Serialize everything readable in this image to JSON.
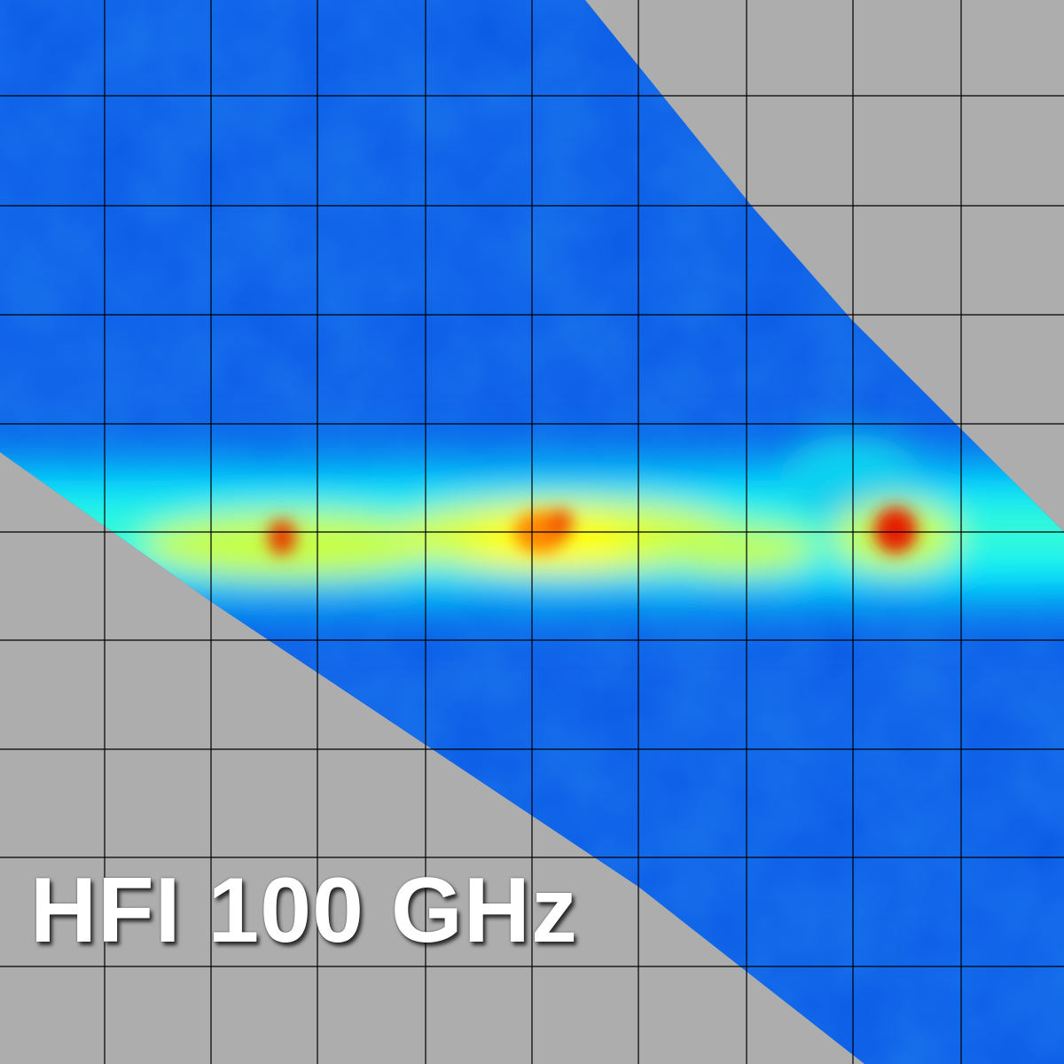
{
  "label": "HFI 100 GHz",
  "colors": {
    "background": "#adadad",
    "low": "#0a5ae6",
    "mid": "#00ffff",
    "high": "#ffff00",
    "peak": "#e61e00",
    "grid": "#000000"
  }
}
